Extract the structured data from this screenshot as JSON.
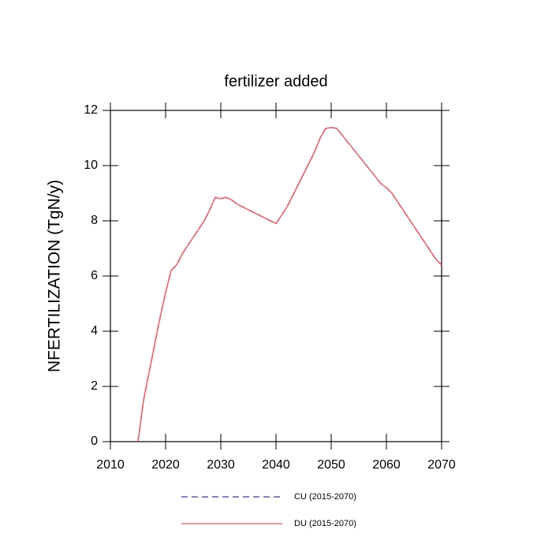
{
  "chart_data": {
    "type": "line",
    "title": "fertilizer added",
    "ylabel": "NFERTILIZATION  (TgN/y)",
    "x": [
      2015,
      2016,
      2017,
      2018,
      2019,
      2020,
      2021,
      2022,
      2023,
      2024,
      2025,
      2026,
      2027,
      2028,
      2029,
      2030,
      2031,
      2032,
      2033,
      2034,
      2035,
      2036,
      2037,
      2038,
      2039,
      2040,
      2041,
      2042,
      2043,
      2044,
      2045,
      2046,
      2047,
      2048,
      2049,
      2050,
      2051,
      2052,
      2053,
      2054,
      2055,
      2056,
      2057,
      2058,
      2059,
      2060,
      2061,
      2062,
      2063,
      2064,
      2065,
      2066,
      2067,
      2068,
      2069,
      2070
    ],
    "series": [
      {
        "name": "CU (2015-2070)",
        "color": "#3333cc",
        "dash": true,
        "values": [
          0,
          1.5,
          2.5,
          3.5,
          4.5,
          5.4,
          6.2,
          6.4,
          6.8,
          7.1,
          7.4,
          7.7,
          8.0,
          8.4,
          8.85,
          8.8,
          8.85,
          8.75,
          8.6,
          8.5,
          8.4,
          8.3,
          8.2,
          8.1,
          8.0,
          7.9,
          8.2,
          8.5,
          8.9,
          9.3,
          9.7,
          10.1,
          10.5,
          11.0,
          11.35,
          11.38,
          11.35,
          11.1,
          10.85,
          10.6,
          10.35,
          10.1,
          9.85,
          9.6,
          9.35,
          9.2,
          9.0,
          8.7,
          8.4,
          8.1,
          7.8,
          7.5,
          7.2,
          6.9,
          6.6,
          6.4
        ]
      },
      {
        "name": "DU (2015-2070)",
        "color": "#ff5555",
        "dash": false,
        "values": [
          0,
          1.5,
          2.5,
          3.5,
          4.5,
          5.4,
          6.2,
          6.4,
          6.8,
          7.1,
          7.4,
          7.7,
          8.0,
          8.4,
          8.85,
          8.8,
          8.85,
          8.75,
          8.6,
          8.5,
          8.4,
          8.3,
          8.2,
          8.1,
          8.0,
          7.9,
          8.2,
          8.5,
          8.9,
          9.3,
          9.7,
          10.1,
          10.5,
          11.0,
          11.35,
          11.38,
          11.35,
          11.1,
          10.85,
          10.6,
          10.35,
          10.1,
          9.85,
          9.6,
          9.35,
          9.2,
          9.0,
          8.7,
          8.4,
          8.1,
          7.8,
          7.5,
          7.2,
          6.9,
          6.6,
          6.4
        ]
      }
    ],
    "xlim": [
      2010,
      2070
    ],
    "xticks": [
      2010,
      2020,
      2030,
      2040,
      2050,
      2060,
      2070
    ],
    "ylim": [
      0,
      12
    ],
    "yticks": [
      0,
      2,
      4,
      6,
      8,
      10,
      12
    ]
  }
}
